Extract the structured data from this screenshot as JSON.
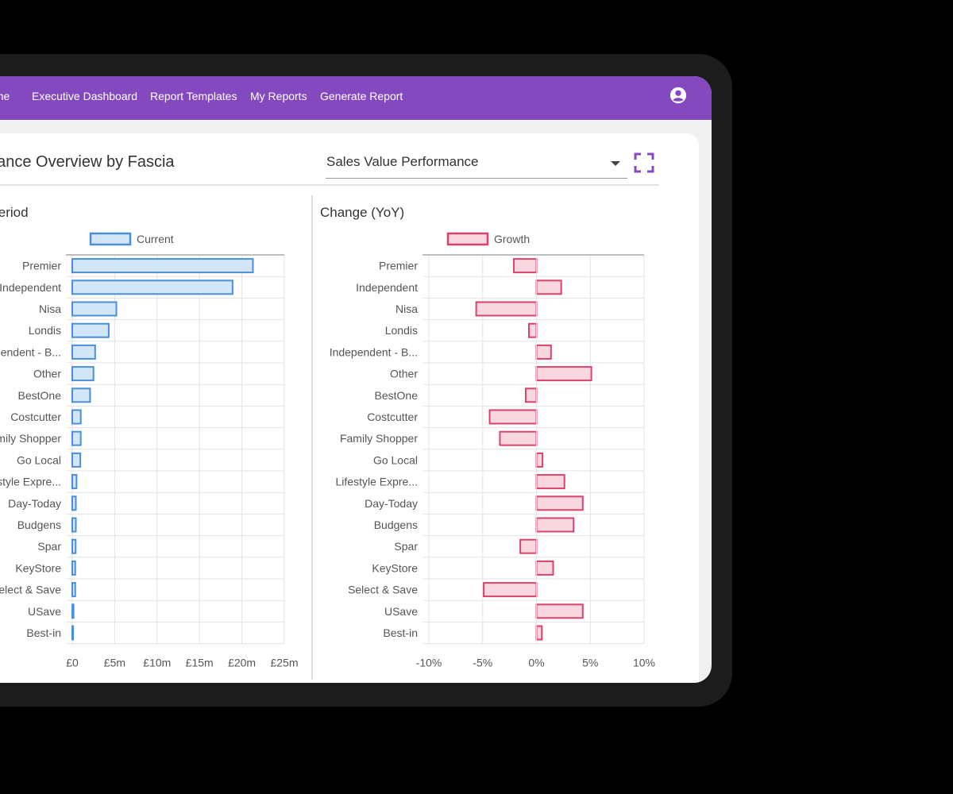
{
  "nav": {
    "items": [
      "Home",
      "Executive Dashboard",
      "Report Templates",
      "My Reports",
      "Generate Report"
    ],
    "user_icon": "account-circle-icon"
  },
  "card": {
    "title": "Performance Overview by Fascia",
    "metric_select": {
      "value": "Sales Value Performance",
      "icon": "caret-down-icon"
    },
    "fullscreen_icon": "fullscreen-icon"
  },
  "colors": {
    "nav": "#8549bf",
    "current_stroke": "#4a90d9",
    "current_fill": "#d3e6f8",
    "growth_stroke": "#d9436b",
    "growth_fill": "#f9d7e0"
  },
  "chart_data": [
    {
      "type": "bar",
      "orientation": "horizontal",
      "title": "Current Period",
      "legend": [
        "Current"
      ],
      "legend_position": "top",
      "categories": [
        "Premier",
        "Independent",
        "Nisa",
        "Londis",
        "Independent - B...",
        "Other",
        "BestOne",
        "Costcutter",
        "Family Shopper",
        "Go Local",
        "Lifestyle Expre...",
        "Day-Today",
        "Budgens",
        "Spar",
        "KeyStore",
        "Select & Save",
        "USave",
        "Best-in"
      ],
      "series": [
        {
          "name": "Current",
          "values": [
            21.3,
            18.9,
            5.2,
            4.3,
            2.7,
            2.5,
            2.1,
            1.0,
            1.0,
            0.95,
            0.5,
            0.42,
            0.42,
            0.4,
            0.35,
            0.35,
            0.15,
            0.1
          ]
        }
      ],
      "unit": "£m",
      "xlim": [
        0,
        25
      ],
      "xticks": [
        0,
        5,
        10,
        15,
        20,
        25
      ],
      "xtick_labels": [
        "£0",
        "£5m",
        "£10m",
        "£15m",
        "£20m",
        "£25m"
      ],
      "grid": true
    },
    {
      "type": "bar",
      "orientation": "horizontal",
      "title": "Change (YoY)",
      "legend": [
        "Growth"
      ],
      "legend_position": "top",
      "categories": [
        "Premier",
        "Independent",
        "Nisa",
        "Londis",
        "Independent - B...",
        "Other",
        "BestOne",
        "Costcutter",
        "Family Shopper",
        "Go Local",
        "Lifestyle Expre...",
        "Day-Today",
        "Budgens",
        "Spar",
        "KeyStore",
        "Select & Save",
        "USave",
        "Best-in"
      ],
      "series": [
        {
          "name": "Growth",
          "values": [
            -2.1,
            2.3,
            -5.6,
            -0.7,
            1.35,
            5.1,
            -1.0,
            -4.35,
            -3.4,
            0.56,
            2.6,
            4.3,
            3.45,
            -1.5,
            1.55,
            -4.9,
            4.3,
            0.5
          ]
        }
      ],
      "unit": "%",
      "xlim": [
        -10,
        10
      ],
      "xticks": [
        -10,
        -5,
        0,
        5,
        10
      ],
      "xtick_labels": [
        "-10%",
        "-5%",
        "0%",
        "5%",
        "10%"
      ],
      "grid": true
    }
  ]
}
